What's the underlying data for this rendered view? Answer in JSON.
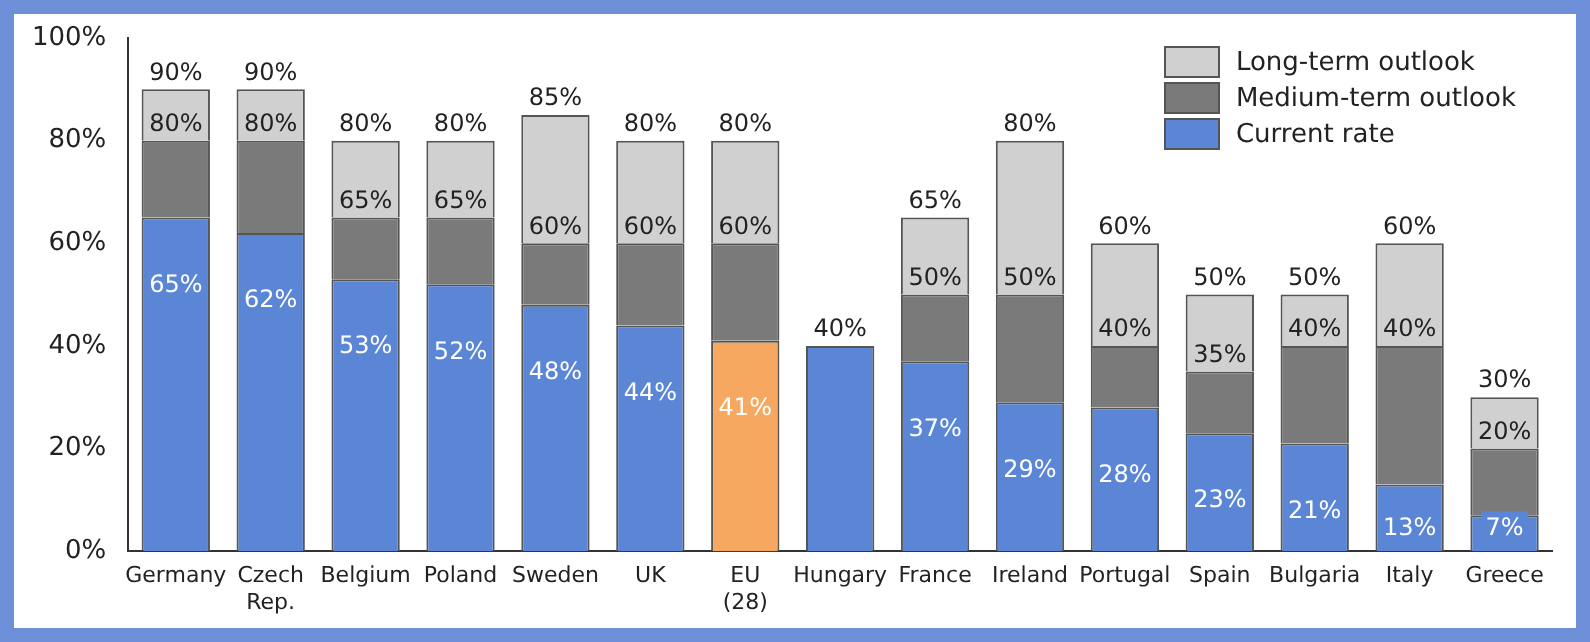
{
  "chart_data": {
    "type": "bar",
    "stacked": true,
    "categories": [
      "Germany",
      "Czech Rep.",
      "Belgium",
      "Poland",
      "Sweden",
      "UK",
      "EU (28)",
      "Hungary",
      "France",
      "Ireland",
      "Portugal",
      "Spain",
      "Bulgaria",
      "Italy",
      "Greece"
    ],
    "series": [
      {
        "name": "Current rate",
        "color": "#5b86d6",
        "colors": [
          "#5b86d6",
          "#5b86d6",
          "#5b86d6",
          "#5b86d6",
          "#5b86d6",
          "#5b86d6",
          "#f7a860",
          "#5b86d6",
          "#5b86d6",
          "#5b86d6",
          "#5b86d6",
          "#5b86d6",
          "#5b86d6",
          "#5b86d6",
          "#5b86d6"
        ],
        "values": [
          65,
          62,
          53,
          52,
          48,
          44,
          41,
          40,
          37,
          29,
          28,
          23,
          21,
          13,
          7
        ],
        "value_labels": [
          "65%",
          "62%",
          "53%",
          "52%",
          "48%",
          "44%",
          "41%",
          "40%",
          "37%",
          "29%",
          "28%",
          "23%",
          "21%",
          "13%",
          "7%"
        ]
      },
      {
        "name": "Medium-term outlook",
        "color": "#7a7a7a",
        "values": [
          15,
          18,
          12,
          13,
          12,
          16,
          19,
          null,
          13,
          21,
          12,
          12,
          19,
          27,
          13
        ]
      },
      {
        "name": "Long-term outlook",
        "color": "#d0d0d0",
        "values": [
          10,
          10,
          15,
          15,
          25,
          20,
          20,
          null,
          15,
          30,
          20,
          15,
          10,
          20,
          10
        ]
      }
    ],
    "annotations": [
      {
        "text": "80%",
        "x": "Germany",
        "y": 80
      },
      {
        "text": "90%",
        "x": "Germany",
        "y": 90
      },
      {
        "text": "80%",
        "x": "Czech Rep.",
        "y": 80
      },
      {
        "text": "90%",
        "x": "Czech Rep.",
        "y": 90
      },
      {
        "text": "65%",
        "x": "Belgium",
        "y": 65
      },
      {
        "text": "80%",
        "x": "Belgium",
        "y": 80
      },
      {
        "text": "65%",
        "x": "Poland",
        "y": 65
      },
      {
        "text": "80%",
        "x": "Poland",
        "y": 80
      },
      {
        "text": "60%",
        "x": "Sweden",
        "y": 60
      },
      {
        "text": "85%",
        "x": "Sweden",
        "y": 85
      },
      {
        "text": "60%",
        "x": "UK",
        "y": 60
      },
      {
        "text": "80%",
        "x": "UK",
        "y": 80
      },
      {
        "text": "60%",
        "x": "EU (28)",
        "y": 60
      },
      {
        "text": "80%",
        "x": "EU (28)",
        "y": 80
      },
      {
        "text": "50%",
        "x": "France",
        "y": 50
      },
      {
        "text": "65%",
        "x": "France",
        "y": 65
      },
      {
        "text": "50%",
        "x": "Ireland",
        "y": 50
      },
      {
        "text": "80%",
        "x": "Ireland",
        "y": 80
      },
      {
        "text": "40%",
        "x": "Portugal",
        "y": 40
      },
      {
        "text": "60%",
        "x": "Portugal",
        "y": 60
      },
      {
        "text": "35%",
        "x": "Spain",
        "y": 35
      },
      {
        "text": "50%",
        "x": "Spain",
        "y": 50
      },
      {
        "text": "40%",
        "x": "Bulgaria",
        "y": 40
      },
      {
        "text": "50%",
        "x": "Bulgaria",
        "y": 50
      },
      {
        "text": "40%",
        "x": "Italy",
        "y": 40
      },
      {
        "text": "60%",
        "x": "Italy",
        "y": 60
      },
      {
        "text": "20%",
        "x": "Greece",
        "y": 20
      },
      {
        "text": "30%",
        "x": "Greece",
        "y": 30
      }
    ],
    "ylim": [
      0,
      100
    ],
    "yticks": [
      {
        "value": 0,
        "label": "0%"
      },
      {
        "value": 20,
        "label": "20%"
      },
      {
        "value": 40,
        "label": "40%"
      },
      {
        "value": 60,
        "label": "60%"
      },
      {
        "value": 80,
        "label": "80%"
      },
      {
        "value": 100,
        "label": "100%"
      }
    ],
    "grid": false,
    "legend": "top right"
  }
}
